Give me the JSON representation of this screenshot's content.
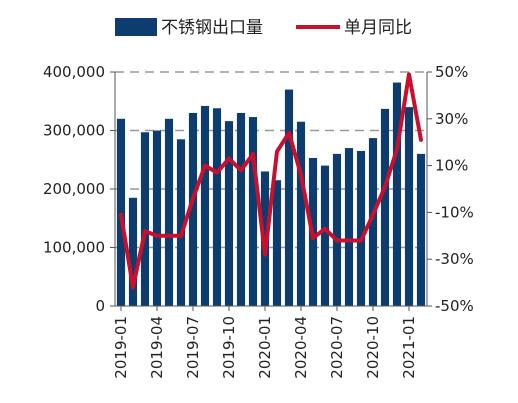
{
  "chart_data": {
    "type": "bar+line",
    "categories": [
      "2019-01",
      "2019-02",
      "2019-03",
      "2019-04",
      "2019-05",
      "2019-06",
      "2019-07",
      "2019-08",
      "2019-09",
      "2019-10",
      "2019-11",
      "2019-12",
      "2020-01",
      "2020-02",
      "2020-03",
      "2020-04",
      "2020-05",
      "2020-06",
      "2020-07",
      "2020-08",
      "2020-09",
      "2020-10",
      "2020-11",
      "2020-12",
      "2021-01",
      "2021-02"
    ],
    "x_tick_labels": [
      "2019-01",
      "2019-04",
      "2019-07",
      "2019-10",
      "2020-01",
      "2020-04",
      "2020-07",
      "2020-10",
      "2021-01"
    ],
    "series": [
      {
        "name": "不锈钢出口量",
        "type": "bar",
        "axis": "left",
        "color": "#0d3d6e",
        "values": [
          320000,
          185000,
          297000,
          300000,
          320000,
          285000,
          330000,
          342000,
          338000,
          316000,
          330000,
          323000,
          230000,
          215000,
          370000,
          315000,
          253000,
          240000,
          260000,
          270000,
          265000,
          287000,
          337000,
          382000,
          340000,
          260000
        ]
      },
      {
        "name": "单月同比",
        "type": "line",
        "axis": "right",
        "color": "#c8102e",
        "values": [
          -11,
          -42,
          -18,
          -20,
          -20,
          -20,
          -4,
          10,
          7,
          13,
          8,
          15,
          -28,
          16,
          24,
          6,
          -21,
          -17,
          -22,
          -22,
          -22,
          -11,
          1,
          17,
          49,
          21
        ]
      }
    ],
    "y_left": {
      "ylim": [
        0,
        400000
      ],
      "ticks": [
        "0",
        "100,000",
        "200,000",
        "300,000",
        "400,000"
      ]
    },
    "y_right": {
      "ylim": [
        -50,
        50
      ],
      "ticks": [
        "-50%",
        "-30%",
        "-10%",
        "10%",
        "30%",
        "50%"
      ]
    },
    "grid": "dashed horizontal",
    "legend_position": "top"
  }
}
